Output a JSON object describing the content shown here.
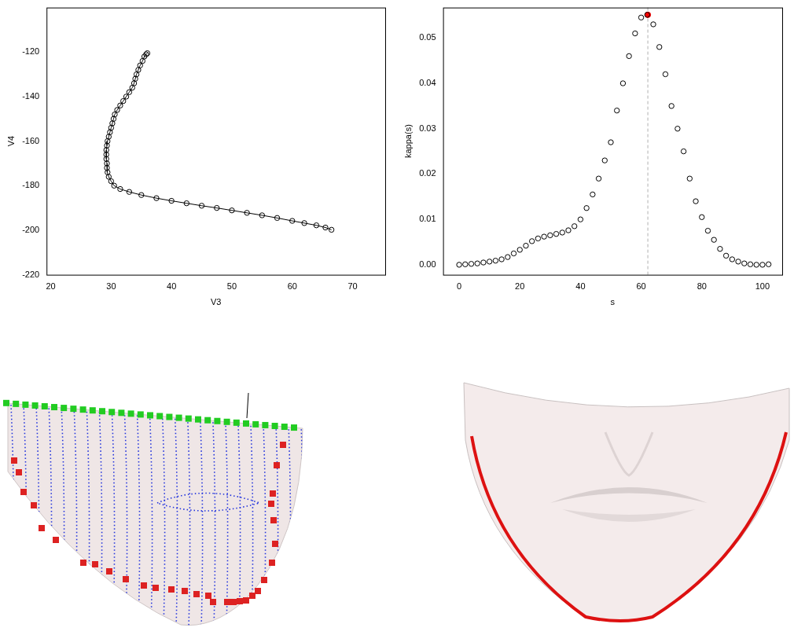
{
  "chart_data": [
    {
      "type": "line",
      "x_label": "V3",
      "y_label": "V4",
      "color": "black",
      "marker": "open_circle",
      "line_style": "solid",
      "xlim": [
        19.3,
        75.4
      ],
      "xticks": [
        20,
        30,
        40,
        50,
        60,
        70
      ],
      "ylim": [
        -220,
        -100
      ],
      "yticks": [
        -220,
        -200,
        -180,
        -160,
        -140,
        -120
      ],
      "x": [
        36,
        35.8,
        35.5,
        35.2,
        34.8,
        34.5,
        34.2,
        34,
        33.8,
        33.5,
        33,
        32.5,
        32,
        31.5,
        31,
        30.6,
        30.4,
        30.2,
        30,
        29.8,
        29.6,
        29.4,
        29.3,
        29.2,
        29.2,
        29.2,
        29.3,
        29.3,
        29.4,
        29.6,
        30,
        30.5,
        31.5,
        33,
        35,
        37.5,
        40,
        42.5,
        45,
        47.5,
        50,
        52.5,
        55,
        57.5,
        60,
        62,
        64,
        65.5,
        66.5
      ],
      "values": [
        -120.5,
        -121,
        -122,
        -124,
        -126,
        -128,
        -130,
        -132,
        -134,
        -136,
        -138,
        -140,
        -142,
        -144,
        -146,
        -148,
        -150,
        -152,
        -154,
        -156,
        -158,
        -160,
        -162,
        -164,
        -166,
        -168,
        -170,
        -172,
        -174,
        -176,
        -178,
        -180,
        -181.5,
        -182.8,
        -184.2,
        -185.6,
        -186.8,
        -187.9,
        -189,
        -190,
        -191.1,
        -192.2,
        -193.3,
        -194.5,
        -195.8,
        -196.8,
        -197.8,
        -198.8,
        -199.8
      ]
    },
    {
      "type": "scatter",
      "x_label": "s",
      "y_label": "kappa(s)",
      "color": "black",
      "marker": "open_circle",
      "xlim": [
        -5.3,
        106.5
      ],
      "xticks": [
        0,
        20,
        40,
        60,
        80,
        100
      ],
      "ylim": [
        -0.0022,
        0.0567
      ],
      "yticks": [
        {
          "value": 0,
          "label": "0.00"
        },
        {
          "value": 0.01,
          "label": "0.01"
        },
        {
          "value": 0.02,
          "label": "0.02"
        },
        {
          "value": 0.03,
          "label": "0.03"
        },
        {
          "value": 0.04,
          "label": "0.04"
        },
        {
          "value": 0.05,
          "label": "0.05"
        }
      ],
      "x": [
        0,
        2,
        4,
        6,
        8,
        10,
        12,
        14,
        16,
        18,
        20,
        22,
        24,
        26,
        28,
        30,
        32,
        34,
        36,
        38,
        40,
        42,
        44,
        46,
        48,
        50,
        52,
        54,
        56,
        58,
        60,
        62,
        64,
        66,
        68,
        70,
        72,
        74,
        76,
        78,
        80,
        82,
        84,
        86,
        88,
        90,
        92,
        94,
        96,
        98,
        100,
        102
      ],
      "values": [
        0.0,
        0.0001,
        0.0002,
        0.0003,
        0.0005,
        0.0007,
        0.0009,
        0.0012,
        0.0017,
        0.0025,
        0.0033,
        0.0042,
        0.0052,
        0.0058,
        0.0062,
        0.0065,
        0.0068,
        0.0071,
        0.0076,
        0.0085,
        0.01,
        0.0125,
        0.0155,
        0.019,
        0.023,
        0.027,
        0.034,
        0.04,
        0.046,
        0.051,
        0.0545,
        0.0551,
        0.053,
        0.048,
        0.042,
        0.035,
        0.03,
        0.025,
        0.019,
        0.014,
        0.0105,
        0.0075,
        0.0055,
        0.0035,
        0.002,
        0.0012,
        0.0007,
        0.0003,
        0.0001,
        0.0,
        0.0,
        0.0001
      ],
      "highlight": {
        "x": 62.2,
        "y": 0.0551,
        "color": "red"
      },
      "vline": 62.2
    }
  ]
}
